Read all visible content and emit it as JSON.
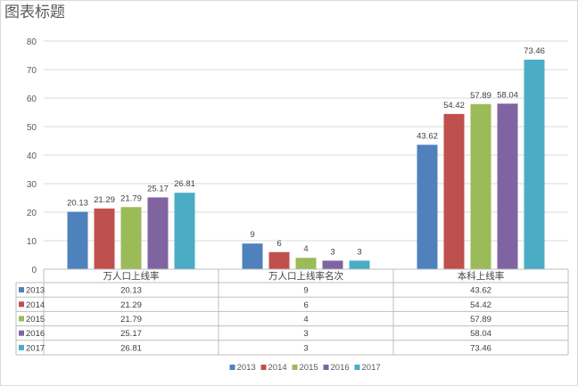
{
  "chart_data": {
    "type": "bar",
    "title": "图表标题",
    "xlabel": "",
    "ylabel": "",
    "categories": [
      "万人口上线率",
      "万人口上线率名次",
      "本科上线率"
    ],
    "series": [
      {
        "name": "2013",
        "values": [
          20.13,
          9,
          43.62
        ],
        "color": "#4f81bd"
      },
      {
        "name": "2014",
        "values": [
          21.29,
          6,
          54.42
        ],
        "color": "#c0504d"
      },
      {
        "name": "2015",
        "values": [
          21.79,
          4,
          57.89
        ],
        "color": "#9bbb59"
      },
      {
        "name": "2016",
        "values": [
          25.17,
          3,
          58.04
        ],
        "color": "#8064a2"
      },
      {
        "name": "2017",
        "values": [
          26.81,
          3,
          73.46
        ],
        "color": "#4bacc6"
      }
    ],
    "ylim": [
      0,
      80
    ],
    "yticks": [
      0,
      10,
      20,
      30,
      40,
      50,
      60,
      70,
      80
    ],
    "grid": true,
    "data_table": true,
    "legend_position": "bottom"
  }
}
